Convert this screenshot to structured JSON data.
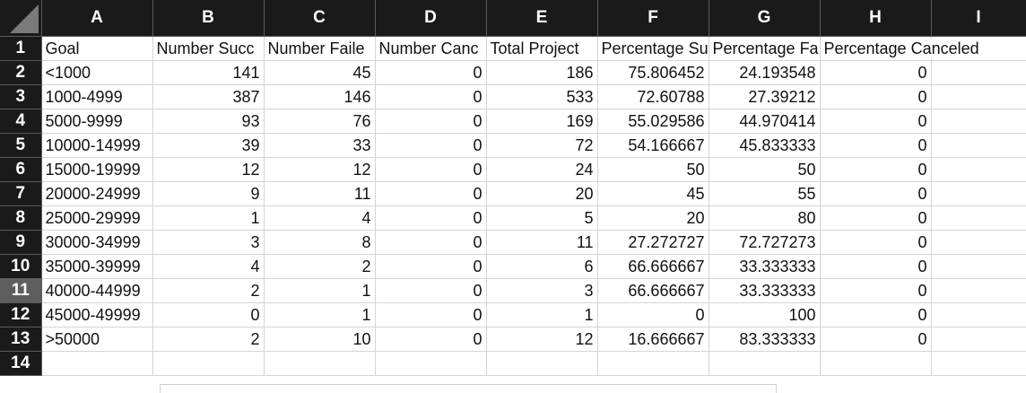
{
  "columns": [
    "A",
    "B",
    "C",
    "D",
    "E",
    "F",
    "G",
    "H",
    "I"
  ],
  "rows": [
    {
      "n": "1",
      "cells": [
        "Goal",
        "Number Succ",
        "Number Faile",
        "Number Canc",
        "Total Project",
        "Percentage Su",
        "Percentage Fa",
        "Percentage Canceled",
        ""
      ]
    },
    {
      "n": "2",
      "cells": [
        "<1000",
        "141",
        "45",
        "0",
        "186",
        "75.806452",
        "24.193548",
        "0",
        ""
      ]
    },
    {
      "n": "3",
      "cells": [
        "1000-4999",
        "387",
        "146",
        "0",
        "533",
        "72.60788",
        "27.39212",
        "0",
        ""
      ]
    },
    {
      "n": "4",
      "cells": [
        "5000-9999",
        "93",
        "76",
        "0",
        "169",
        "55.029586",
        "44.970414",
        "0",
        ""
      ]
    },
    {
      "n": "5",
      "cells": [
        "10000-14999",
        "39",
        "33",
        "0",
        "72",
        "54.166667",
        "45.833333",
        "0",
        ""
      ]
    },
    {
      "n": "6",
      "cells": [
        "15000-19999",
        "12",
        "12",
        "0",
        "24",
        "50",
        "50",
        "0",
        ""
      ]
    },
    {
      "n": "7",
      "cells": [
        "20000-24999",
        "9",
        "11",
        "0",
        "20",
        "45",
        "55",
        "0",
        ""
      ]
    },
    {
      "n": "8",
      "cells": [
        "25000-29999",
        "1",
        "4",
        "0",
        "5",
        "20",
        "80",
        "0",
        ""
      ]
    },
    {
      "n": "9",
      "cells": [
        "30000-34999",
        "3",
        "8",
        "0",
        "11",
        "27.272727",
        "72.727273",
        "0",
        ""
      ]
    },
    {
      "n": "10",
      "cells": [
        "35000-39999",
        "4",
        "2",
        "0",
        "6",
        "66.666667",
        "33.333333",
        "0",
        ""
      ]
    },
    {
      "n": "11",
      "cells": [
        "40000-44999",
        "2",
        "1",
        "0",
        "3",
        "66.666667",
        "33.333333",
        "0",
        ""
      ]
    },
    {
      "n": "12",
      "cells": [
        "45000-49999",
        "0",
        "1",
        "0",
        "1",
        "0",
        "100",
        "0",
        ""
      ]
    },
    {
      "n": "13",
      "cells": [
        ">50000",
        "2",
        "10",
        "0",
        "12",
        "16.666667",
        "83.333333",
        "0",
        ""
      ]
    },
    {
      "n": "14",
      "cells": [
        "",
        "",
        "",
        "",
        "",
        "",
        "",
        "",
        ""
      ]
    }
  ]
}
